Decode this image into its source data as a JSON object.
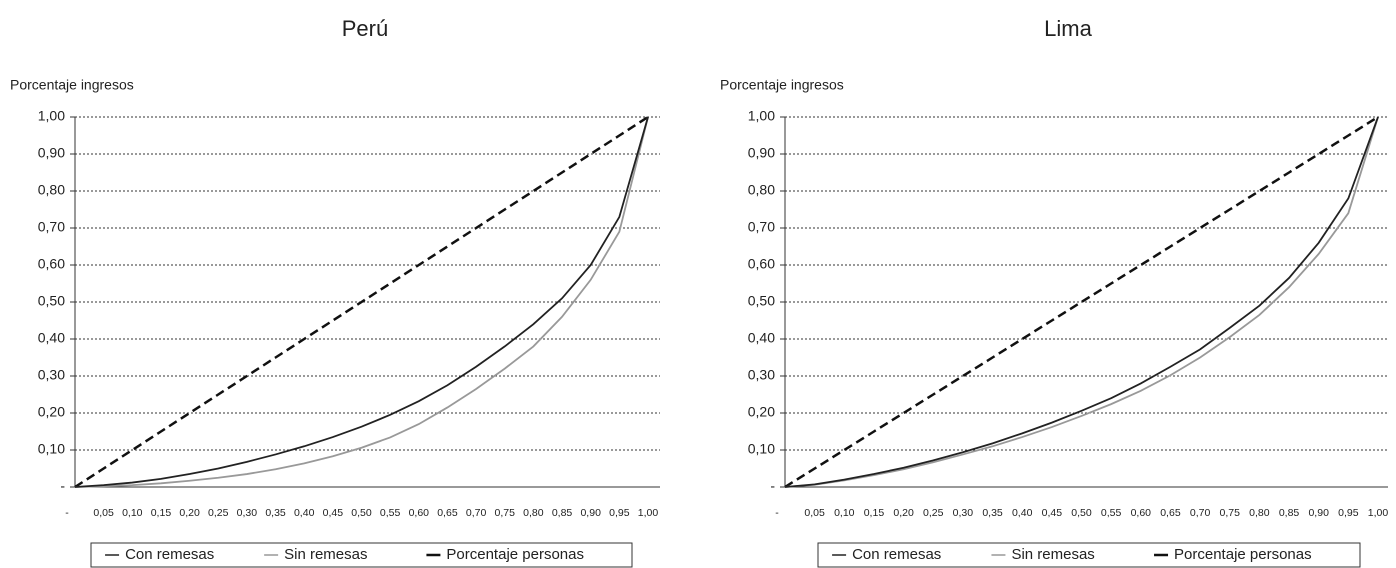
{
  "chart_data": [
    {
      "type": "line",
      "title": "Perú",
      "y_label": "Porcentaje ingresos",
      "categories": [
        "-",
        "0,05",
        "0,10",
        "0,15",
        "0,20",
        "0,25",
        "0,30",
        "0,35",
        "0,40",
        "0,45",
        "0,50",
        "0,55",
        "0,60",
        "0,65",
        "0,70",
        "0,75",
        "0,80",
        "0,85",
        "0,90",
        "0,95",
        "1,00"
      ],
      "series": [
        {
          "name": "Con remesas",
          "color": "#222222",
          "line_style": "solid",
          "values": [
            0,
            0.005,
            0.012,
            0.022,
            0.035,
            0.05,
            0.068,
            0.088,
            0.11,
            0.135,
            0.163,
            0.195,
            0.232,
            0.275,
            0.325,
            0.38,
            0.44,
            0.51,
            0.6,
            0.73,
            1.0
          ]
        },
        {
          "name": "Sin remesas",
          "color": "#999999",
          "line_style": "solid",
          "values": [
            0,
            0.002,
            0.005,
            0.01,
            0.017,
            0.025,
            0.035,
            0.048,
            0.064,
            0.083,
            0.106,
            0.134,
            0.17,
            0.215,
            0.265,
            0.32,
            0.38,
            0.46,
            0.56,
            0.69,
            1.0
          ]
        },
        {
          "name": "Porcentaje personas",
          "color": "#111111",
          "line_style": "dashed",
          "values": [
            0,
            0.05,
            0.1,
            0.15,
            0.2,
            0.25,
            0.3,
            0.35,
            0.4,
            0.45,
            0.5,
            0.55,
            0.6,
            0.65,
            0.7,
            0.75,
            0.8,
            0.85,
            0.9,
            0.95,
            1.0
          ]
        }
      ],
      "ylim": [
        0,
        1
      ],
      "yticks": [
        {
          "value": 0,
          "label": "-"
        },
        {
          "value": 0.1,
          "label": "0,10"
        },
        {
          "value": 0.2,
          "label": "0,20"
        },
        {
          "value": 0.3,
          "label": "0,30"
        },
        {
          "value": 0.4,
          "label": "0,40"
        },
        {
          "value": 0.5,
          "label": "0,50"
        },
        {
          "value": 0.6,
          "label": "0,60"
        },
        {
          "value": 0.7,
          "label": "0,70"
        },
        {
          "value": 0.8,
          "label": "0,80"
        },
        {
          "value": 0.9,
          "label": "0,90"
        },
        {
          "value": 1,
          "label": "1,00"
        }
      ],
      "grid": true,
      "legend": "bottom"
    },
    {
      "type": "line",
      "title": "Lima",
      "y_label": "Porcentaje ingresos",
      "categories": [
        "-",
        "0,05",
        "0,10",
        "0,15",
        "0,20",
        "0,25",
        "0,30",
        "0,35",
        "0,40",
        "0,45",
        "0,50",
        "0,55",
        "0,60",
        "0,65",
        "0,70",
        "0,75",
        "0,80",
        "0,85",
        "0,90",
        "0,95",
        "1,00"
      ],
      "series": [
        {
          "name": "Con remesas",
          "color": "#222222",
          "line_style": "solid",
          "values": [
            0,
            0.007,
            0.02,
            0.035,
            0.052,
            0.072,
            0.094,
            0.118,
            0.145,
            0.174,
            0.206,
            0.24,
            0.28,
            0.325,
            0.372,
            0.43,
            0.49,
            0.565,
            0.66,
            0.78,
            1.0
          ]
        },
        {
          "name": "Sin remesas",
          "color": "#999999",
          "line_style": "solid",
          "values": [
            0,
            0.006,
            0.018,
            0.032,
            0.048,
            0.067,
            0.088,
            0.11,
            0.135,
            0.162,
            0.192,
            0.224,
            0.26,
            0.302,
            0.35,
            0.405,
            0.465,
            0.54,
            0.63,
            0.74,
            1.0
          ]
        },
        {
          "name": "Porcentaje personas",
          "color": "#111111",
          "line_style": "dashed",
          "values": [
            0,
            0.05,
            0.1,
            0.15,
            0.2,
            0.25,
            0.3,
            0.35,
            0.4,
            0.45,
            0.5,
            0.55,
            0.6,
            0.65,
            0.7,
            0.75,
            0.8,
            0.85,
            0.9,
            0.95,
            1.0
          ]
        }
      ],
      "ylim": [
        0,
        1
      ],
      "yticks": [
        {
          "value": 0,
          "label": "-"
        },
        {
          "value": 0.1,
          "label": "0,10"
        },
        {
          "value": 0.2,
          "label": "0,20"
        },
        {
          "value": 0.3,
          "label": "0,30"
        },
        {
          "value": 0.4,
          "label": "0,40"
        },
        {
          "value": 0.5,
          "label": "0,50"
        },
        {
          "value": 0.6,
          "label": "0,60"
        },
        {
          "value": 0.7,
          "label": "0,70"
        },
        {
          "value": 0.8,
          "label": "0,80"
        },
        {
          "value": 0.9,
          "label": "0,90"
        },
        {
          "value": 1,
          "label": "1,00"
        }
      ],
      "grid": true,
      "legend": "bottom"
    }
  ]
}
